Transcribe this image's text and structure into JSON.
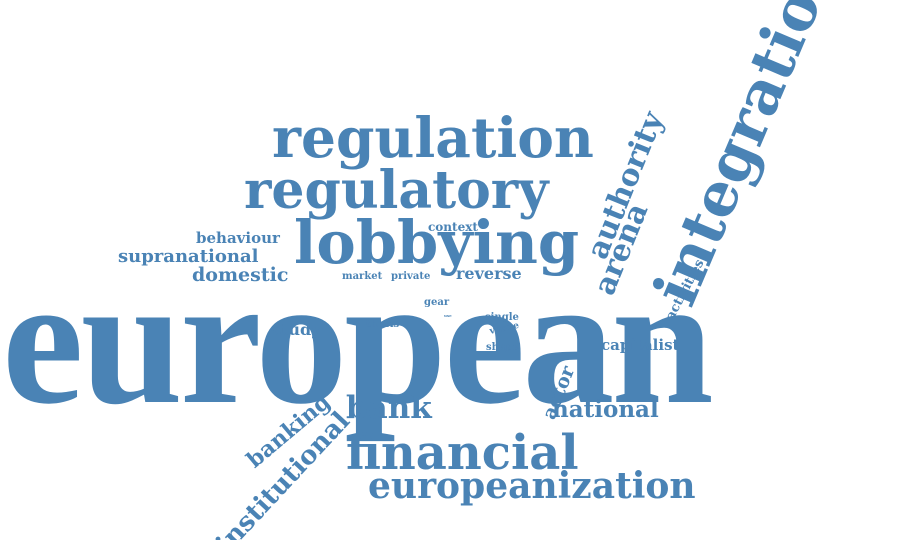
{
  "title": "",
  "word_color": "#4a83b5",
  "background_color": "#ffffff",
  "words": {
    "european": "european",
    "integration": "integration",
    "regulation": "regulation",
    "regulatory": "regulatory",
    "lobbying": "lobbying",
    "authority": "authority",
    "arena": "arena",
    "financial": "financial",
    "europeanization": "europeanization",
    "institutional": "institutional",
    "banking": "banking",
    "bank": "bank",
    "national": "national",
    "capitalist": "capitalist",
    "actor": "actor",
    "activities": "activities",
    "supranational": "supranational",
    "domestic": "domestic",
    "behaviour": "behaviour",
    "context": "context",
    "reverse": "reverse",
    "market": "market",
    "private": "private",
    "study": "study",
    "thesis": "thesis",
    "gear": "gear",
    "single": "single",
    "venue": "venue",
    "shape": "shape",
    "use": "use"
  }
}
